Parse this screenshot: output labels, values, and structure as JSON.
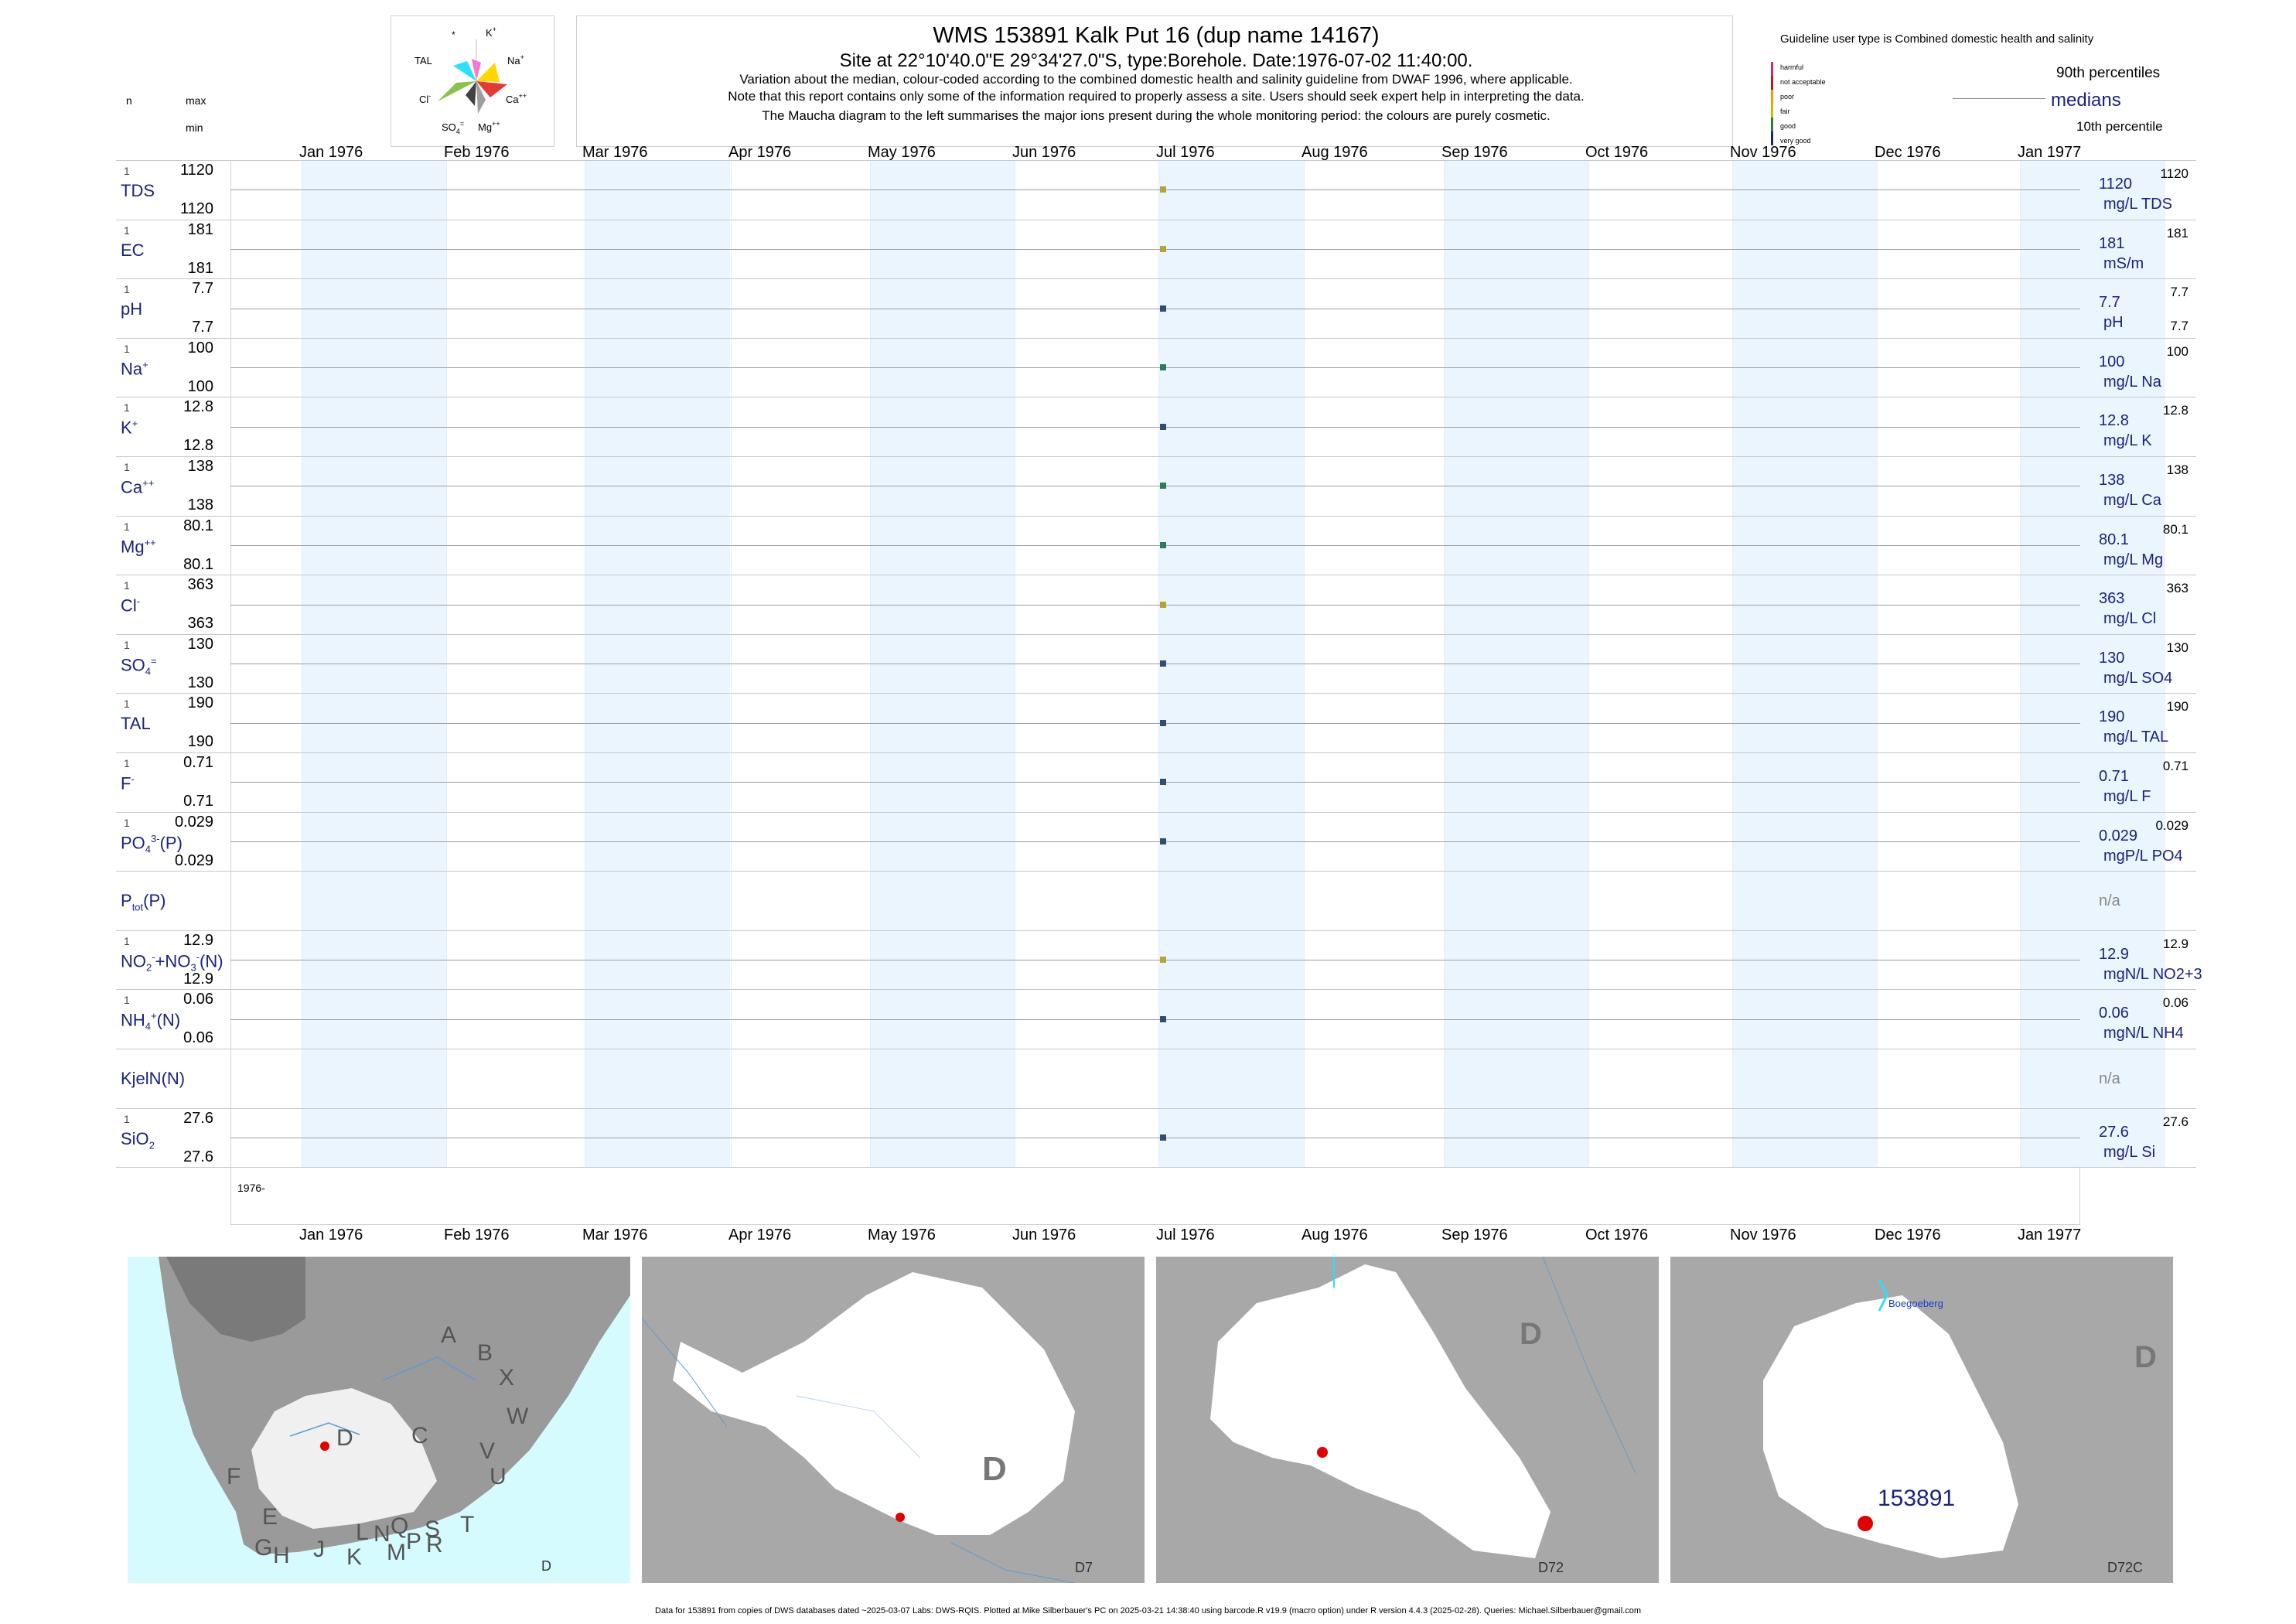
{
  "header": {
    "title": "WMS 153891  Kalk Put 16 (dup name 14167)",
    "subtitle": "Site at 22°10'40.0\"E 29°34'27.0\"S, type:Borehole. Date:1976-07-02 11:40:00.",
    "notes": [
      "Variation about the median,  colour-coded according to the combined domestic health and salinity guideline from DWAF 1996, where applicable.",
      "Note that this report contains only some of the information required to properly assess a site. Users should seek expert help in interpreting the data.",
      "The Maucha diagram to the left summarises the major ions present during the whole monitoring period: the colours are purely cosmetic."
    ],
    "col_n": "n",
    "col_max": "max",
    "col_min": "min"
  },
  "maucha": {
    "labels": {
      "star": "*",
      "k": "K+",
      "na": "Na+",
      "ca": "Ca++",
      "mg": "Mg++",
      "so4": "SO4=",
      "cl": "Cl-",
      "tal": "TAL"
    },
    "colors": {
      "k": "#ff6ad5",
      "na": "#ffd600",
      "ca": "#e53935",
      "mg": "#9e9e9e",
      "so4": "#424242",
      "cl": "#8bc34a",
      "tal": "#29e0ff"
    }
  },
  "legend": {
    "guideline_title": "Guideline user type is Combined domestic health and salinity",
    "categories": [
      {
        "label": "harmful",
        "color": "#e91e63"
      },
      {
        "label": "not acceptable",
        "color": "#b71c1c"
      },
      {
        "label": "poor",
        "color": "#ff9800"
      },
      {
        "label": "fair",
        "color": "#c0c000"
      },
      {
        "label": "good",
        "color": "#2e7d32"
      },
      {
        "label": "very good",
        "color": "#1a237e"
      }
    ],
    "p90": "90th percentiles",
    "medians": "medians",
    "p10": "10th percentile"
  },
  "chart_data": {
    "type": "scatter",
    "x_axis_months": [
      "Jan 1976",
      "Feb 1976",
      "Mar 1976",
      "Apr 1976",
      "May 1976",
      "Jun 1976",
      "Jul 1976",
      "Aug 1976",
      "Sep 1976",
      "Oct 1976",
      "Nov 1976",
      "Dec 1976",
      "Jan 1977"
    ],
    "year_label": "1976-",
    "sample_date": "1976-07-02",
    "series": [
      {
        "key": "tds",
        "name_html": "TDS",
        "n": "1",
        "max": "1120",
        "min": "1120",
        "median": "1120",
        "unit": "mg/L TDS",
        "p90": "1120",
        "p10": "",
        "color": "#b5a33a"
      },
      {
        "key": "ec",
        "name_html": "EC",
        "n": "1",
        "max": "181",
        "min": "181",
        "median": "181",
        "unit": "mS/m",
        "p90": "181",
        "p10": "",
        "color": "#b5a33a"
      },
      {
        "key": "ph",
        "name_html": "pH",
        "n": "1",
        "max": "7.7",
        "min": "7.7",
        "median": "7.7",
        "unit": "pH",
        "p90": "7.7",
        "p10": "7.7",
        "color": "#2f4f6f"
      },
      {
        "key": "na",
        "name_html": "Na<sup>+</sup>",
        "n": "1",
        "max": "100",
        "min": "100",
        "median": "100",
        "unit": "mg/L Na",
        "p90": "100",
        "p10": "",
        "color": "#2e7d5a"
      },
      {
        "key": "k",
        "name_html": "K<sup>+</sup>",
        "n": "1",
        "max": "12.8",
        "min": "12.8",
        "median": "12.8",
        "unit": "mg/L K",
        "p90": "12.8",
        "p10": "",
        "color": "#2f4f6f"
      },
      {
        "key": "ca",
        "name_html": "Ca<sup>++</sup>",
        "n": "1",
        "max": "138",
        "min": "138",
        "median": "138",
        "unit": "mg/L Ca",
        "p90": "138",
        "p10": "",
        "color": "#2e7d5a"
      },
      {
        "key": "mg",
        "name_html": "Mg<sup>++</sup>",
        "n": "1",
        "max": "80.1",
        "min": "80.1",
        "median": "80.1",
        "unit": "mg/L Mg",
        "p90": "80.1",
        "p10": "",
        "color": "#2e7d5a"
      },
      {
        "key": "cl",
        "name_html": "Cl<sup>-</sup>",
        "n": "1",
        "max": "363",
        "min": "363",
        "median": "363",
        "unit": "mg/L Cl",
        "p90": "363",
        "p10": "",
        "color": "#b5a33a"
      },
      {
        "key": "so4",
        "name_html": "SO<sub>4</sub><sup>=</sup>",
        "n": "1",
        "max": "130",
        "min": "130",
        "median": "130",
        "unit": "mg/L SO4",
        "p90": "130",
        "p10": "",
        "color": "#2f4f6f"
      },
      {
        "key": "tal",
        "name_html": "TAL",
        "n": "1",
        "max": "190",
        "min": "190",
        "median": "190",
        "unit": "mg/L TAL",
        "p90": "190",
        "p10": "",
        "color": "#2f4f6f"
      },
      {
        "key": "f",
        "name_html": "F<sup>-</sup>",
        "n": "1",
        "max": "0.71",
        "min": "0.71",
        "median": "0.71",
        "unit": "mg/L F",
        "p90": "0.71",
        "p10": "",
        "color": "#2f4f6f"
      },
      {
        "key": "po4",
        "name_html": "PO<sub>4</sub><sup>3-</sup>(P)",
        "n": "1",
        "max": "0.029",
        "min": "0.029",
        "median": "0.029",
        "unit": "mgP/L PO4",
        "p90": "0.029",
        "p10": "",
        "color": "#2f4f6f"
      },
      {
        "key": "ptot",
        "name_html": "P<sub>tot</sub>(P)",
        "n": "",
        "max": "",
        "min": "",
        "median": "n/a",
        "unit": "",
        "p90": "",
        "p10": "",
        "color": ""
      },
      {
        "key": "no3",
        "name_html": "NO<sub>2</sub><sup>-</sup>+NO<sub>3</sub><sup>-</sup>(N)",
        "n": "1",
        "max": "12.9",
        "min": "12.9",
        "median": "12.9",
        "unit": "mgN/L NO2+3",
        "p90": "12.9",
        "p10": "",
        "color": "#b5a33a"
      },
      {
        "key": "nh4",
        "name_html": "NH<sub>4</sub><sup>+</sup>(N)",
        "n": "1",
        "max": "0.06",
        "min": "0.06",
        "median": "0.06",
        "unit": "mgN/L NH4",
        "p90": "0.06",
        "p10": "",
        "color": "#2f4f6f"
      },
      {
        "key": "kjeln",
        "name_html": "KjelN(N)",
        "n": "",
        "max": "",
        "min": "",
        "median": "n/a",
        "unit": "",
        "p90": "",
        "p10": "",
        "color": ""
      },
      {
        "key": "sio2",
        "name_html": "SiO<sub>2</sub>",
        "n": "1",
        "max": "27.6",
        "min": "27.6",
        "median": "27.6",
        "unit": "mg/L Si",
        "p90": "27.6",
        "p10": "",
        "color": "#2f4f6f"
      }
    ]
  },
  "maps": {
    "overview_regions": [
      "A",
      "B",
      "X",
      "W",
      "C",
      "V",
      "U",
      "D",
      "F",
      "E",
      "T",
      "G",
      "H",
      "J",
      "K",
      "L",
      "N",
      "Q",
      "M",
      "P",
      "S",
      "R"
    ],
    "panel_labels": [
      "D",
      "D7",
      "D72",
      "D72C"
    ],
    "big_label": "D",
    "place_name": "Boegoeberg",
    "site_label": "153891"
  },
  "footer": "Data for 153891 from copies of DWS databases dated ~2025-03-07 Labs: DWS-RQIS. Plotted at Mike Silberbauer's PC on 2025-03-21 14:38:40 using barcode.R v19.9 (macro option) under R version 4.4.3 (2025-02-28). Queries: Michael.Silberbauer@gmail.com"
}
